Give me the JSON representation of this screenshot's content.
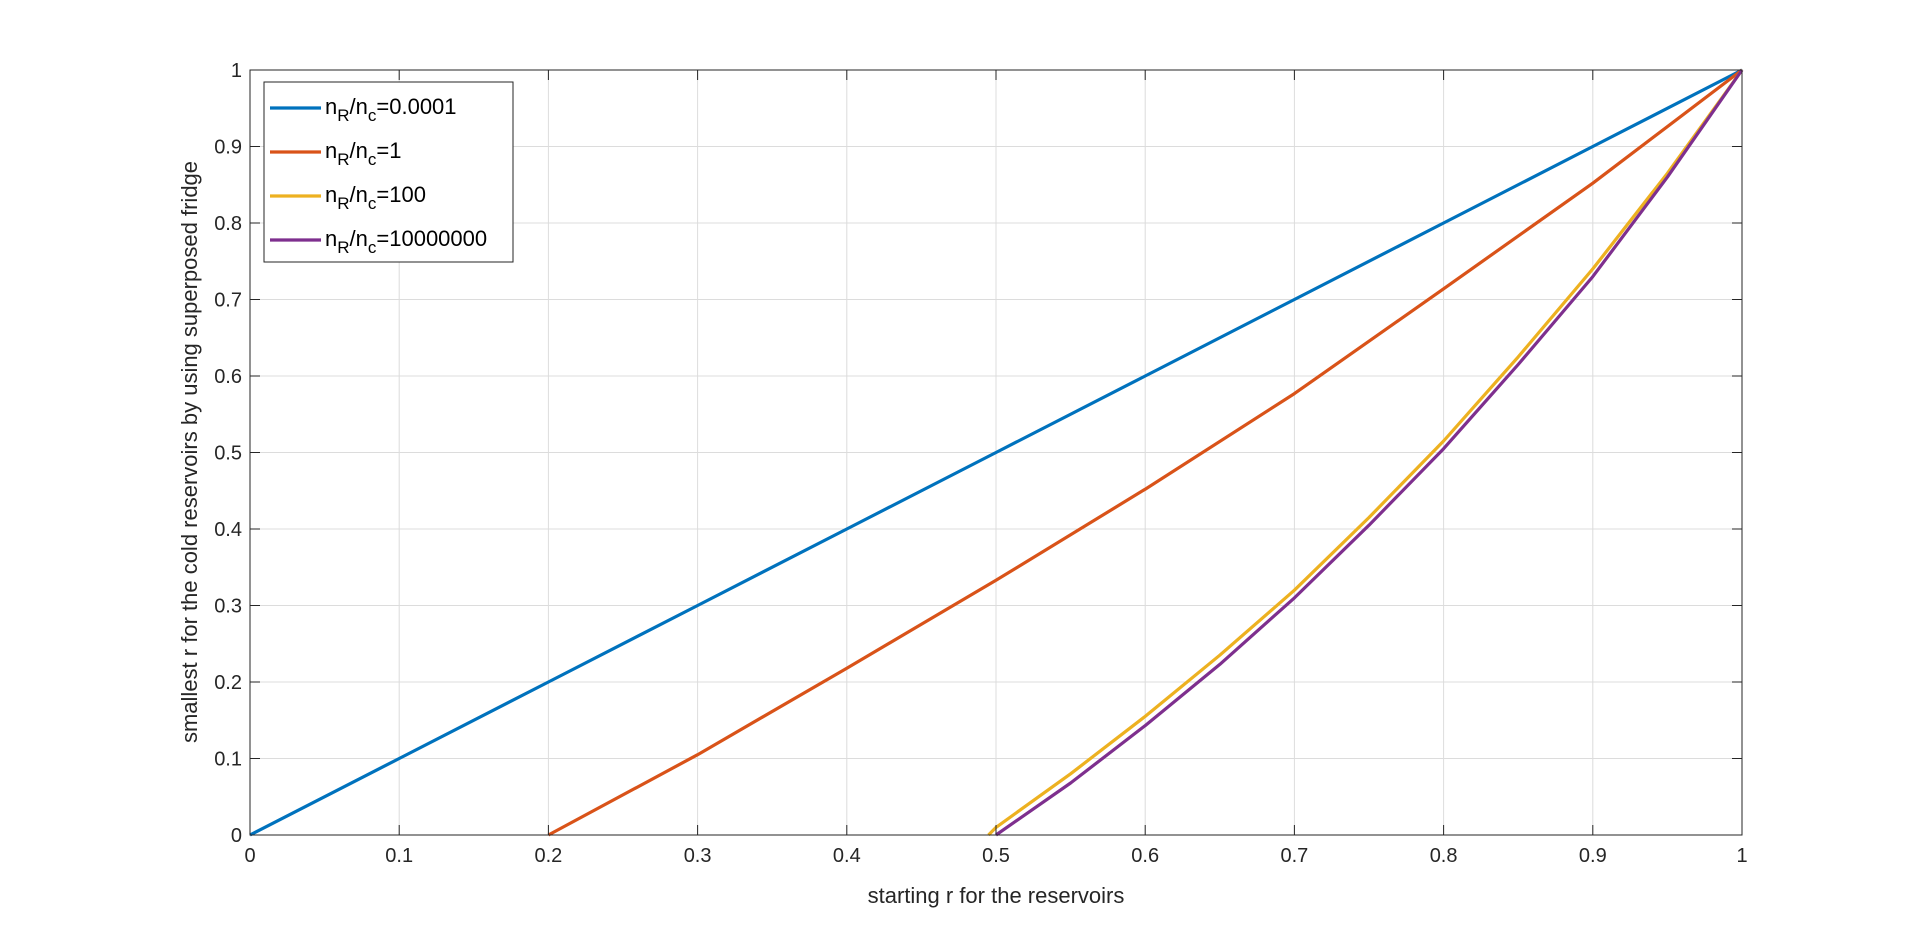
{
  "chart_data": {
    "type": "line",
    "title": "",
    "xlabel": "starting r for the reservoirs",
    "ylabel": "smallest r for the cold reservoirs by using superposed fridge",
    "xlim": [
      0,
      1
    ],
    "ylim": [
      0,
      1
    ],
    "xticks": [
      "0",
      "0.1",
      "0.2",
      "0.3",
      "0.4",
      "0.5",
      "0.6",
      "0.7",
      "0.8",
      "0.9",
      "1"
    ],
    "yticks": [
      "0",
      "0.1",
      "0.2",
      "0.3",
      "0.4",
      "0.5",
      "0.6",
      "0.7",
      "0.8",
      "0.9",
      "1"
    ],
    "grid": true,
    "legend_position": "top-left",
    "series": [
      {
        "legend": {
          "num": "n",
          "num_sub": "R",
          "den": "/n",
          "den_sub": "c",
          "value": "=0.0001"
        },
        "color": "#0072BD",
        "x": [
          0,
          0.1,
          0.2,
          0.3,
          0.4,
          0.5,
          0.6,
          0.7,
          0.8,
          0.9,
          1
        ],
        "y": [
          0,
          0.1,
          0.2,
          0.3,
          0.4,
          0.5,
          0.6,
          0.7,
          0.8,
          0.9,
          1
        ]
      },
      {
        "legend": {
          "num": "n",
          "num_sub": "R",
          "den": "/n",
          "den_sub": "c",
          "value": "=1"
        },
        "color": "#D95319",
        "x": [
          0.2,
          0.3,
          0.4,
          0.5,
          0.6,
          0.7,
          0.8,
          0.9,
          1
        ],
        "y": [
          0,
          0.105,
          0.218,
          0.333,
          0.452,
          0.577,
          0.714,
          0.852,
          1
        ]
      },
      {
        "legend": {
          "num": "n",
          "num_sub": "R",
          "den": "/n",
          "den_sub": "c",
          "value": "=100"
        },
        "color": "#EDB120",
        "x": [
          0.495,
          0.5,
          0.55,
          0.6,
          0.65,
          0.7,
          0.75,
          0.8,
          0.85,
          0.9,
          0.95,
          1
        ],
        "y": [
          0,
          0.01,
          0.08,
          0.155,
          0.235,
          0.32,
          0.415,
          0.515,
          0.625,
          0.74,
          0.865,
          1
        ]
      },
      {
        "legend": {
          "num": "n",
          "num_sub": "R",
          "den": "/n",
          "den_sub": "c",
          "value": "=10000000"
        },
        "color": "#7E2F8E",
        "x": [
          0.5,
          0.55,
          0.6,
          0.65,
          0.7,
          0.75,
          0.8,
          0.85,
          0.9,
          0.95,
          1
        ],
        "y": [
          0,
          0.068,
          0.143,
          0.223,
          0.31,
          0.405,
          0.505,
          0.615,
          0.73,
          0.86,
          1
        ]
      }
    ]
  }
}
